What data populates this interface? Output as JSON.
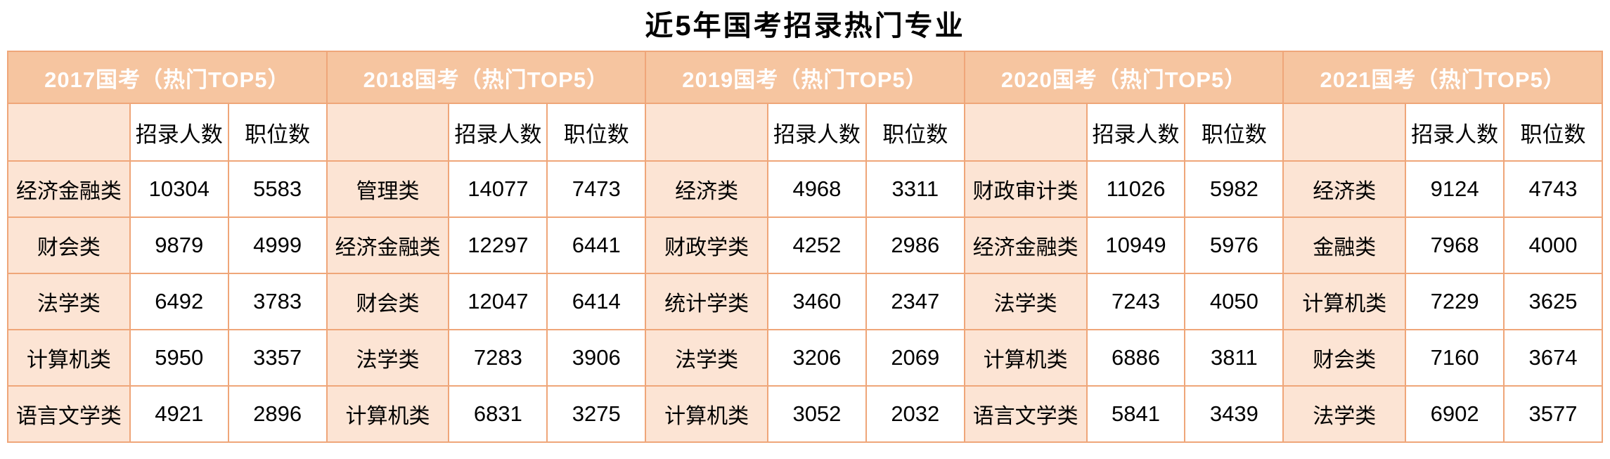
{
  "page": {
    "title": "近5年国考招录热门专业"
  },
  "colors": {
    "header_bg": "#F6C5A0",
    "label_bg": "#FCE4D4",
    "border": "#EFA679",
    "header_text": "#FFFFFF",
    "body_text": "#000000"
  },
  "chart_data": {
    "type": "table",
    "title": "近5年国考招录热门专业",
    "metric_headers": [
      "招录人数",
      "职位数"
    ],
    "sections": [
      {
        "year": "2017",
        "year_header": "2017国考（热门TOP5）",
        "rows": [
          {
            "major": "经济金融类",
            "recruits": "10304",
            "positions": "5583"
          },
          {
            "major": "财会类",
            "recruits": "9879",
            "positions": "4999"
          },
          {
            "major": "法学类",
            "recruits": "6492",
            "positions": "3783"
          },
          {
            "major": "计算机类",
            "recruits": "5950",
            "positions": "3357"
          },
          {
            "major": "语言文学类",
            "recruits": "4921",
            "positions": "2896"
          }
        ]
      },
      {
        "year": "2018",
        "year_header": "2018国考（热门TOP5）",
        "rows": [
          {
            "major": "管理类",
            "recruits": "14077",
            "positions": "7473"
          },
          {
            "major": "经济金融类",
            "recruits": "12297",
            "positions": "6441"
          },
          {
            "major": "财会类",
            "recruits": "12047",
            "positions": "6414"
          },
          {
            "major": "法学类",
            "recruits": "7283",
            "positions": "3906"
          },
          {
            "major": "计算机类",
            "recruits": "6831",
            "positions": "3275"
          }
        ]
      },
      {
        "year": "2019",
        "year_header": "2019国考（热门TOP5）",
        "rows": [
          {
            "major": "经济类",
            "recruits": "4968",
            "positions": "3311"
          },
          {
            "major": "财政学类",
            "recruits": "4252",
            "positions": "2986"
          },
          {
            "major": "统计学类",
            "recruits": "3460",
            "positions": "2347"
          },
          {
            "major": "法学类",
            "recruits": "3206",
            "positions": "2069"
          },
          {
            "major": "计算机类",
            "recruits": "3052",
            "positions": "2032"
          }
        ]
      },
      {
        "year": "2020",
        "year_header": "2020国考（热门TOP5）",
        "rows": [
          {
            "major": "财政审计类",
            "recruits": "11026",
            "positions": "5982"
          },
          {
            "major": "经济金融类",
            "recruits": "10949",
            "positions": "5976"
          },
          {
            "major": "法学类",
            "recruits": "7243",
            "positions": "4050"
          },
          {
            "major": "计算机类",
            "recruits": "6886",
            "positions": "3811"
          },
          {
            "major": "语言文学类",
            "recruits": "5841",
            "positions": "3439"
          }
        ]
      },
      {
        "year": "2021",
        "year_header": "2021国考（热门TOP5）",
        "rows": [
          {
            "major": "经济类",
            "recruits": "9124",
            "positions": "4743"
          },
          {
            "major": "金融类",
            "recruits": "7968",
            "positions": "4000"
          },
          {
            "major": "计算机类",
            "recruits": "7229",
            "positions": "3625"
          },
          {
            "major": "财会类",
            "recruits": "7160",
            "positions": "3674"
          },
          {
            "major": "法学类",
            "recruits": "6902",
            "positions": "3577"
          }
        ]
      }
    ]
  }
}
